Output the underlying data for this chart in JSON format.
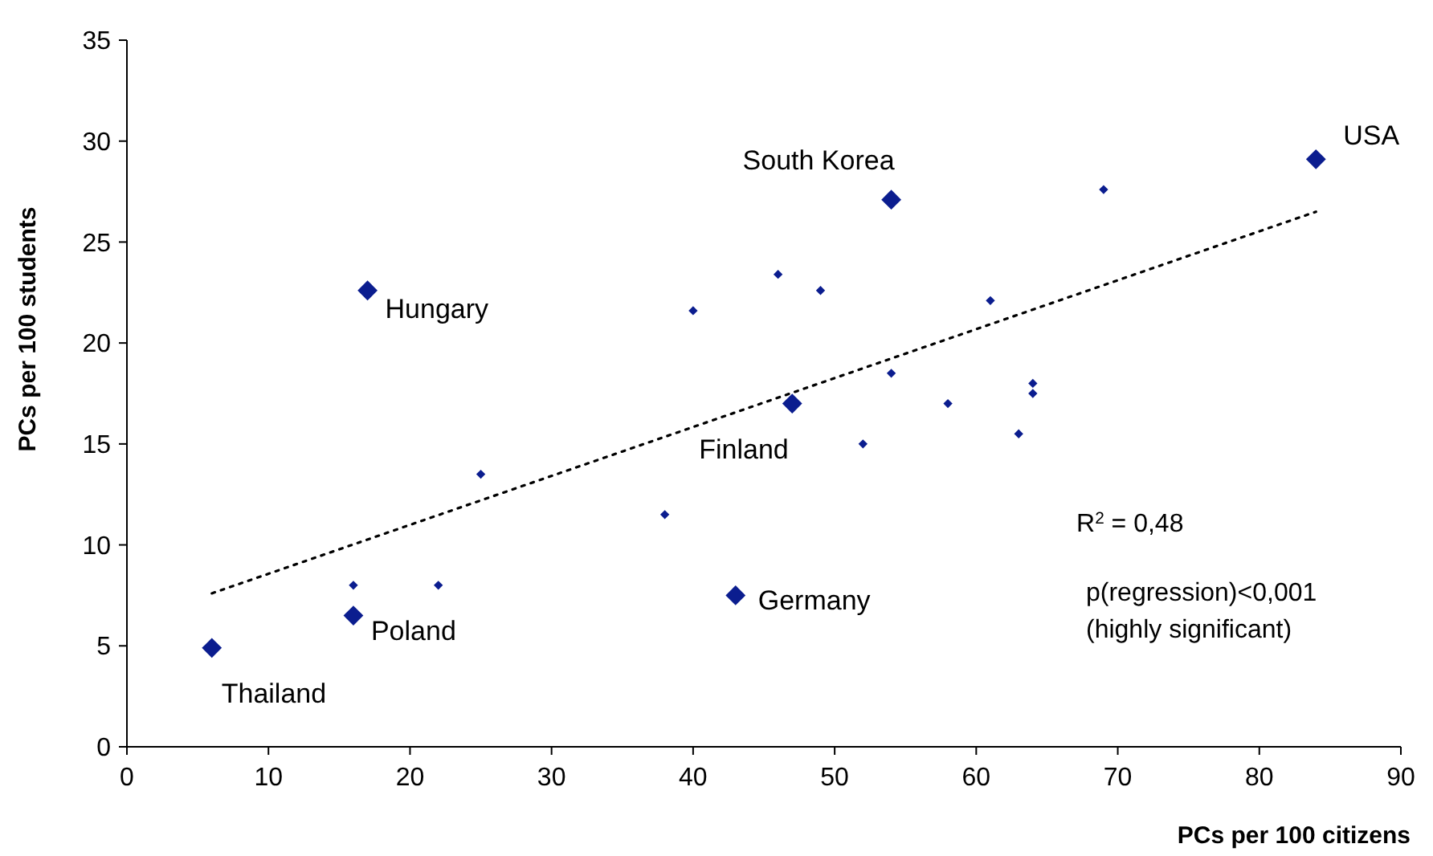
{
  "chart_data": {
    "type": "scatter",
    "xlabel": "PCs per 100 citizens",
    "ylabel": "PCs per 100 students",
    "xlim": [
      0,
      90
    ],
    "xticks": [
      0,
      10,
      20,
      30,
      40,
      50,
      60,
      70,
      80,
      90
    ],
    "ylim": [
      0,
      35
    ],
    "yticks": [
      0,
      5,
      10,
      15,
      20,
      25,
      30,
      35
    ],
    "grid": false,
    "marker": "diamond",
    "series": [
      {
        "color": "#0b1d8f",
        "x": [
          6,
          16,
          17,
          43,
          47,
          54,
          84
        ],
        "values": [
          4.9,
          6.5,
          22.6,
          7.5,
          17,
          27.1,
          29.1
        ]
      },
      {
        "color": "#0b1d8f",
        "x": [
          16,
          22,
          25,
          38,
          40,
          46,
          49,
          52,
          54,
          58,
          61,
          63,
          64,
          64,
          69
        ],
        "values": [
          8,
          8,
          13.5,
          11.5,
          21.6,
          23.4,
          22.6,
          15,
          18.5,
          17,
          22.1,
          15.5,
          18,
          17.5,
          27.6
        ]
      },
      {
        "type": "line",
        "color": "#000000",
        "line_style": "dotted",
        "marker": "none",
        "x": [
          6,
          84
        ],
        "values": [
          7.6,
          26.5
        ]
      }
    ],
    "annotations": [
      {
        "text": "Thailand",
        "x": 6,
        "y": 4.9
      },
      {
        "text": "Poland",
        "x": 16,
        "y": 6.5
      },
      {
        "text": "Hungary",
        "x": 17,
        "y": 22.6
      },
      {
        "text": "Germany",
        "x": 43,
        "y": 7.5
      },
      {
        "text": "Finland",
        "x": 47,
        "y": 17
      },
      {
        "text": "South Korea",
        "x": 54,
        "y": 27.1
      },
      {
        "text": "USA",
        "x": 84,
        "y": 29.1
      },
      "R$^{2}$ = 0,48",
      "p(regression)<0,001",
      "(highly significant)"
    ]
  }
}
